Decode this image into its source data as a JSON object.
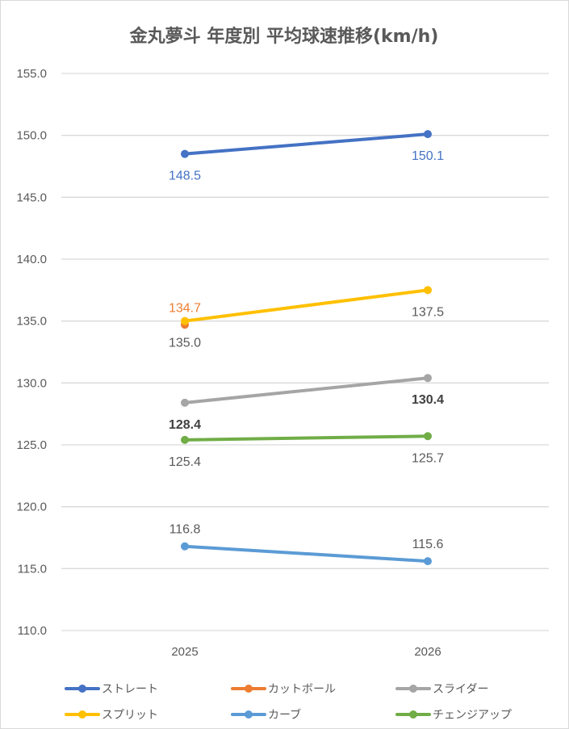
{
  "chart_data": {
    "type": "line",
    "title": "金丸夢斗 年度別 平均球速推移(km/h)",
    "xlabel": "",
    "ylabel": "",
    "categories": [
      "2025",
      "2026"
    ],
    "ylim": [
      110,
      155
    ],
    "yticks": [
      "110.0",
      "115.0",
      "120.0",
      "125.0",
      "130.0",
      "135.0",
      "140.0",
      "145.0",
      "150.0",
      "155.0"
    ],
    "grid": true,
    "legend_position": "bottom",
    "series": [
      {
        "name": "ストレート",
        "color": "#4472c4",
        "values": [
          148.5,
          150.1
        ],
        "labels": [
          "148.5",
          "150.1"
        ],
        "label_color": "#4472c4",
        "label_pos": [
          "below",
          "below"
        ]
      },
      {
        "name": "カットボール",
        "color": "#ed7d31",
        "values": [
          134.7,
          null
        ],
        "labels": [
          "134.7",
          null
        ],
        "label_color": "#ed7d31",
        "label_pos": [
          "above",
          "above"
        ]
      },
      {
        "name": "スライダー",
        "color": "#a5a5a5",
        "values": [
          128.4,
          130.4
        ],
        "labels": [
          "128.4",
          "130.4"
        ],
        "label_color": "#404040",
        "label_pos": [
          "below",
          "below"
        ]
      },
      {
        "name": "スプリット",
        "color": "#ffc000",
        "values": [
          135.0,
          137.5
        ],
        "labels": [
          "135.0",
          "137.5"
        ],
        "label_color": "#595959",
        "label_pos": [
          "below",
          "below"
        ]
      },
      {
        "name": "カーブ",
        "color": "#5b9bd5",
        "values": [
          116.8,
          115.6
        ],
        "labels": [
          "116.8",
          "115.6"
        ],
        "label_color": "#595959",
        "label_pos": [
          "above",
          "above"
        ]
      },
      {
        "name": "チェンジアップ",
        "color": "#70ad47",
        "values": [
          125.4,
          125.7
        ],
        "labels": [
          "125.4",
          "125.7"
        ],
        "label_color": "#595959",
        "label_pos": [
          "below",
          "below"
        ]
      }
    ]
  }
}
